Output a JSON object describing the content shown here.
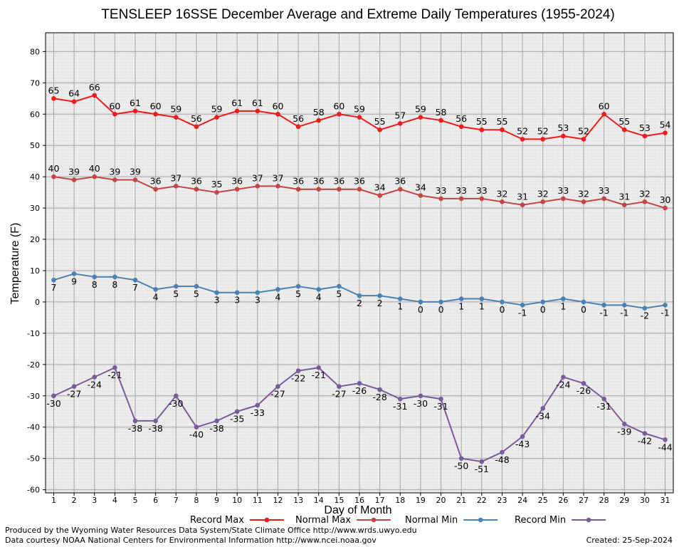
{
  "title": "TENSLEEP 16SSE December Average and Extreme Daily Temperatures (1955-2024)",
  "footer": {
    "line1": "Produced by the Wyoming Water Resources Data System/State Climate Office http://www.wrds.uwyo.edu",
    "line2": "Data courtesy NOAA National Centers for Environmental Information http://www.ncei.noaa.gov",
    "created": "Created: 25-Sep-2024"
  },
  "chart_data": {
    "type": "line",
    "title": "TENSLEEP 16SSE December Average and Extreme Daily Temperatures (1955-2024)",
    "xlabel": "Day of Month",
    "ylabel": "Temperature (F)",
    "x": [
      1,
      2,
      3,
      4,
      5,
      6,
      7,
      8,
      9,
      10,
      11,
      12,
      13,
      14,
      15,
      16,
      17,
      18,
      19,
      20,
      21,
      22,
      23,
      24,
      25,
      26,
      27,
      28,
      29,
      30,
      31
    ],
    "xlim": [
      0.6,
      31.4
    ],
    "ylim": [
      -61,
      86
    ],
    "yticks": [
      -60,
      -50,
      -40,
      -30,
      -20,
      -10,
      0,
      10,
      20,
      30,
      40,
      50,
      60,
      70,
      80
    ],
    "grid": true,
    "legend_position": "bottom",
    "series": [
      {
        "name": "Record Max",
        "color": "#ee1c1c",
        "label_pos": "above",
        "values": [
          65,
          64,
          66,
          60,
          61,
          60,
          59,
          56,
          59,
          61,
          61,
          60,
          56,
          58,
          60,
          59,
          55,
          57,
          59,
          58,
          56,
          55,
          55,
          52,
          52,
          53,
          52,
          60,
          55,
          53,
          54
        ]
      },
      {
        "name": "Normal Max",
        "color": "#c24646",
        "label_pos": "above",
        "values": [
          40,
          39,
          40,
          39,
          39,
          36,
          37,
          36,
          35,
          36,
          37,
          37,
          36,
          36,
          36,
          36,
          34,
          36,
          34,
          33,
          33,
          33,
          32,
          31,
          32,
          33,
          32,
          33,
          31,
          32,
          30
        ]
      },
      {
        "name": "Normal Min",
        "color": "#4a82b4",
        "label_pos": "below",
        "values": [
          7,
          9,
          8,
          8,
          7,
          4,
          5,
          5,
          3,
          3,
          3,
          4,
          5,
          4,
          5,
          2,
          2,
          1,
          0,
          0,
          1,
          1,
          0,
          -1,
          0,
          1,
          0,
          -1,
          -1,
          -2,
          -1
        ]
      },
      {
        "name": "Record Min",
        "color": "#7b5b9c",
        "label_pos": "below",
        "values": [
          -30,
          -27,
          -24,
          -21,
          -38,
          -38,
          -30,
          -40,
          -38,
          -35,
          -33,
          -27,
          -22,
          -21,
          -27,
          -26,
          -28,
          -31,
          -30,
          -31,
          -50,
          -51,
          -48,
          -43,
          -34,
          -24,
          -26,
          -31,
          -39,
          -42,
          -44
        ]
      }
    ]
  }
}
